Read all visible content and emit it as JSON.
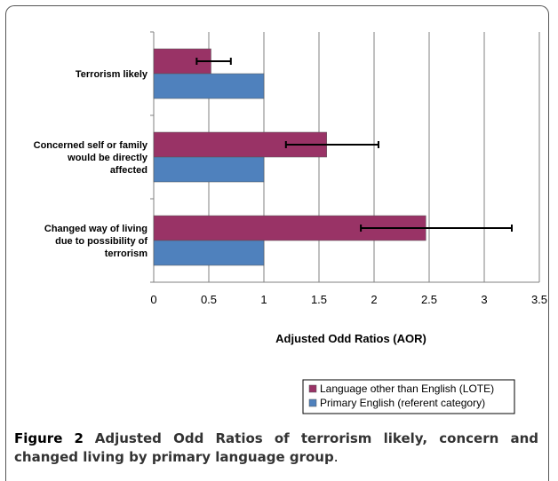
{
  "chart_data": {
    "type": "bar",
    "orientation": "horizontal",
    "categories": [
      [
        "Terrorism likely"
      ],
      [
        "Concerned self or family",
        "would be directly",
        "affected"
      ],
      [
        "Changed way of living",
        "due to possibility of",
        "terrorism"
      ]
    ],
    "series": [
      {
        "name": "Language other than English (LOTE)",
        "color": "#993366",
        "values": [
          0.52,
          1.57,
          2.47
        ],
        "error_low": [
          0.39,
          1.2,
          1.88
        ],
        "error_high": [
          0.7,
          2.04,
          3.25
        ]
      },
      {
        "name": "Primary English (referent category)",
        "color": "#4f81bd",
        "values": [
          1,
          1,
          1
        ]
      }
    ],
    "xlim": [
      0,
      3.5
    ],
    "x_ticks": [
      "0",
      "0.5",
      "1",
      "1.5",
      "2",
      "2.5",
      "3",
      "3.5"
    ],
    "xlabel": "Adjusted Odd Ratios (AOR)",
    "grid": "vertical",
    "legend_position": "bottom-right"
  },
  "caption": {
    "label": "Figure 2",
    "text": "Adjusted Odd Ratios of terrorism likely, concern and changed living by primary language group",
    "end": "."
  }
}
